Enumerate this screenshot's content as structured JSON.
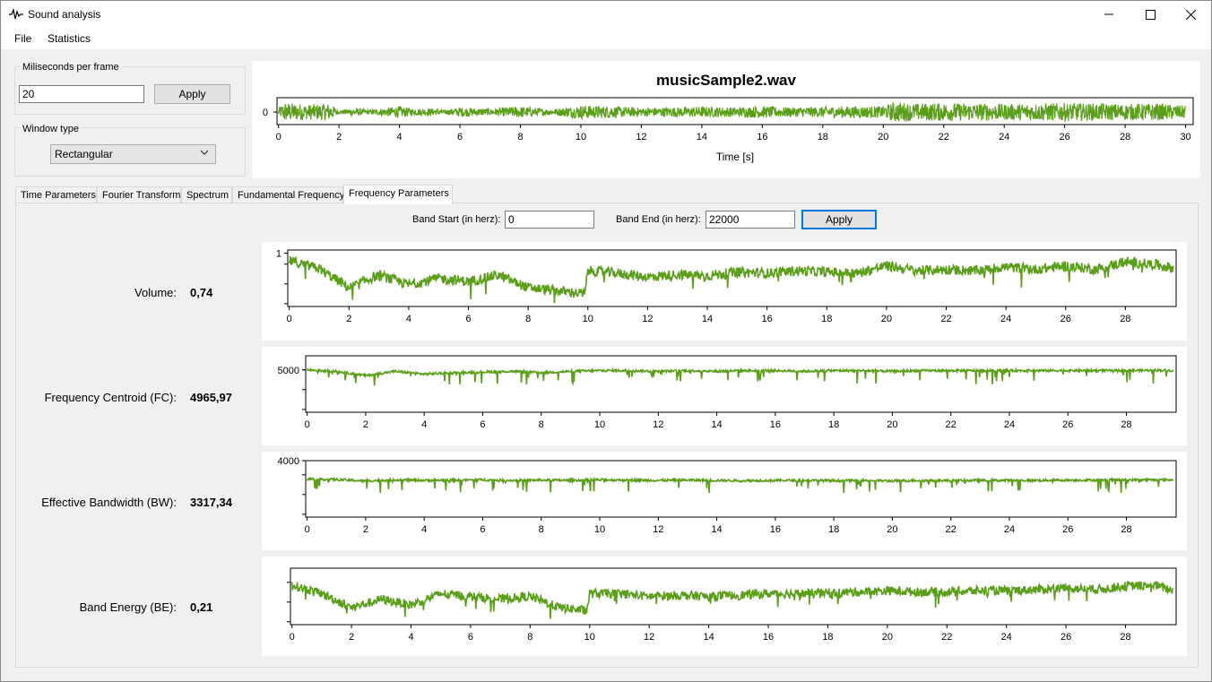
{
  "window": {
    "title": "Sound analysis"
  },
  "menu": {
    "items": [
      "File",
      "Statistics"
    ]
  },
  "controls": {
    "ms_per_frame": {
      "label": "Miliseconds per frame",
      "value": "20",
      "apply": "Apply"
    },
    "window_type": {
      "label": "Window type",
      "selected": "Rectangular"
    }
  },
  "waveform": {
    "title": "musicSample2.wav",
    "xlabel": "Time [s]",
    "y_tick": "0",
    "x_ticks": [
      "0",
      "2",
      "4",
      "6",
      "8",
      "10",
      "12",
      "14",
      "16",
      "18",
      "20",
      "22",
      "24",
      "26",
      "28",
      "30"
    ],
    "color": "#5a9e1a"
  },
  "tabs": [
    "Time Parameters",
    "Fourier Transform",
    "Spectrum",
    "Fundamental Frequency",
    "Frequency Parameters"
  ],
  "active_tab": "Frequency Parameters",
  "band": {
    "start_label": "Band Start (in herz):",
    "start_value": "0",
    "end_label": "Band End (in herz):",
    "end_value": "22000",
    "apply": "Apply"
  },
  "params": [
    {
      "label": "Volume:",
      "value": "0,74",
      "y_tick": "1"
    },
    {
      "label": "Frequency Centroid (FC):",
      "value": "4965,97",
      "y_tick": "5000"
    },
    {
      "label": "Effective Bandwidth (BW):",
      "value": "3317,34",
      "y_tick": "4000"
    },
    {
      "label": "Band Energy (BE):",
      "value": "0,21",
      "y_tick": ""
    }
  ],
  "param_x_ticks": [
    "0",
    "2",
    "4",
    "6",
    "8",
    "10",
    "12",
    "14",
    "16",
    "18",
    "20",
    "22",
    "24",
    "26",
    "28"
  ],
  "chart_data": [
    {
      "type": "line",
      "title": "musicSample2.wav",
      "xlabel": "Time [s]",
      "ylabel": "",
      "xlim": [
        0,
        30
      ],
      "series": [
        {
          "values_desc": []
        }
      ]
    },
    {
      "type": "line",
      "title": "",
      "xlabel": "",
      "ylabel": "",
      "xlim": [
        0,
        29.7
      ],
      "ylim": [
        0.15,
        1.05
      ],
      "series": [
        {
          "x": [
            0,
            1,
            2,
            3,
            4,
            5,
            6,
            7,
            8,
            9,
            9.9,
            10,
            11,
            12,
            13,
            14,
            15,
            16,
            17,
            18,
            19,
            20,
            21,
            22,
            23,
            24,
            25,
            26,
            27,
            28,
            29,
            29.6
          ],
          "values": [
            0.88,
            0.75,
            0.45,
            0.65,
            0.5,
            0.6,
            0.55,
            0.65,
            0.45,
            0.4,
            0.35,
            0.72,
            0.68,
            0.62,
            0.66,
            0.64,
            0.7,
            0.68,
            0.72,
            0.7,
            0.68,
            0.8,
            0.72,
            0.74,
            0.72,
            0.78,
            0.74,
            0.8,
            0.74,
            0.86,
            0.82,
            0.76
          ]
        }
      ]
    },
    {
      "type": "line",
      "title": "",
      "xlabel": "",
      "ylabel": "",
      "xlim": [
        0,
        29.7
      ],
      "ylim": [
        2000,
        6000
      ],
      "series": [
        {
          "x": [
            0,
            1,
            2,
            3,
            4,
            5,
            6,
            7,
            8,
            9,
            10,
            11,
            12,
            13,
            14,
            15,
            16,
            17,
            18,
            19,
            20,
            21,
            22,
            23,
            24,
            25,
            26,
            27,
            28,
            29,
            29.6
          ],
          "values": [
            5000,
            4900,
            4600,
            4900,
            4700,
            4800,
            4850,
            4900,
            4800,
            4900,
            4950,
            4950,
            4900,
            4950,
            4900,
            4950,
            4950,
            4900,
            4950,
            4950,
            4900,
            4950,
            4950,
            4950,
            4950,
            4950,
            4950,
            4950,
            4950,
            4980,
            4950
          ]
        }
      ]
    },
    {
      "type": "line",
      "title": "",
      "xlabel": "",
      "ylabel": "",
      "xlim": [
        0,
        29.7
      ],
      "ylim": [
        2000,
        4000
      ],
      "series": [
        {
          "x": [
            0,
            1,
            2,
            3,
            4,
            5,
            6,
            7,
            8,
            9,
            10,
            11,
            12,
            13,
            14,
            15,
            16,
            17,
            18,
            19,
            20,
            21,
            22,
            23,
            24,
            25,
            26,
            27,
            28,
            29,
            29.6
          ],
          "values": [
            3350,
            3330,
            3280,
            3320,
            3300,
            3310,
            3320,
            3300,
            3310,
            3300,
            3320,
            3310,
            3300,
            3310,
            3300,
            3290,
            3300,
            3300,
            3290,
            3300,
            3280,
            3300,
            3290,
            3300,
            3300,
            3300,
            3310,
            3310,
            3320,
            3320,
            3320
          ]
        }
      ]
    },
    {
      "type": "line",
      "title": "",
      "xlabel": "",
      "ylabel": "",
      "xlim": [
        0,
        29.7
      ],
      "ylim": [
        0,
        1
      ],
      "series": [
        {
          "x": [
            0,
            1,
            2,
            3,
            4,
            5,
            6,
            7,
            8,
            9,
            9.9,
            10,
            11,
            12,
            13,
            14,
            15,
            16,
            17,
            18,
            19,
            20,
            21,
            22,
            23,
            24,
            25,
            26,
            27,
            28,
            29,
            29.6
          ],
          "values": [
            0.7,
            0.55,
            0.3,
            0.45,
            0.35,
            0.55,
            0.5,
            0.45,
            0.5,
            0.3,
            0.25,
            0.55,
            0.55,
            0.5,
            0.52,
            0.5,
            0.52,
            0.55,
            0.55,
            0.56,
            0.58,
            0.6,
            0.58,
            0.58,
            0.6,
            0.6,
            0.62,
            0.65,
            0.62,
            0.68,
            0.7,
            0.6
          ]
        }
      ]
    }
  ]
}
